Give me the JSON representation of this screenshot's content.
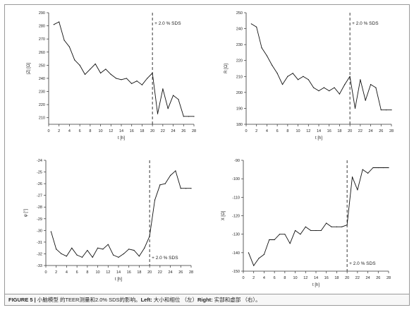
{
  "chart_data": [
    {
      "type": "line",
      "xlabel": "t [h]",
      "ylabel": "|Z| [Ω]",
      "xlim": [
        0,
        28
      ],
      "ylim": [
        205,
        290
      ],
      "xticks": [
        0,
        2,
        4,
        6,
        8,
        10,
        12,
        14,
        16,
        18,
        20,
        22,
        24,
        26,
        28
      ],
      "yticks": [
        210,
        220,
        230,
        240,
        250,
        260,
        270,
        280,
        290
      ],
      "annotation": {
        "text": "+ 2.0 % SDS",
        "x": 20,
        "position": "top"
      },
      "series": [
        {
          "x": [
            1,
            2,
            3,
            4,
            5,
            6,
            7,
            8,
            9,
            10,
            11,
            12,
            13,
            14,
            15,
            16,
            17,
            18,
            19,
            20,
            21,
            22,
            23,
            24,
            25,
            26,
            27,
            28
          ],
          "values": [
            281,
            283,
            269,
            264,
            254,
            250,
            243,
            247,
            251,
            244,
            247,
            243,
            240,
            239,
            240,
            236,
            238,
            235,
            240,
            244,
            213,
            232,
            217,
            227,
            224,
            211,
            211,
            211
          ]
        }
      ]
    },
    {
      "type": "line",
      "xlabel": "t [h]",
      "ylabel": "R [Ω]",
      "xlim": [
        0,
        28
      ],
      "ylim": [
        180,
        250
      ],
      "xticks": [
        0,
        2,
        4,
        6,
        8,
        10,
        12,
        14,
        16,
        18,
        20,
        22,
        24,
        26,
        28
      ],
      "yticks": [
        180,
        190,
        200,
        210,
        220,
        230,
        240,
        250
      ],
      "annotation": {
        "text": "+ 2.0 % SDS",
        "x": 20,
        "position": "top"
      },
      "series": [
        {
          "x": [
            1,
            2,
            3,
            4,
            5,
            6,
            7,
            8,
            9,
            10,
            11,
            12,
            13,
            14,
            15,
            16,
            17,
            18,
            19,
            20,
            21,
            22,
            23,
            24,
            25,
            26,
            27,
            28
          ],
          "values": [
            243,
            241,
            228,
            223,
            217,
            212,
            205,
            210,
            212,
            208,
            210,
            208,
            203,
            201,
            203,
            201,
            203,
            199,
            205,
            210,
            190,
            208,
            195,
            205,
            203,
            189,
            189,
            189
          ]
        }
      ]
    },
    {
      "type": "line",
      "xlabel": "t [h]",
      "ylabel": "φ [°]",
      "xlim": [
        0,
        28
      ],
      "ylim": [
        -33,
        -24
      ],
      "xticks": [
        0,
        2,
        4,
        6,
        8,
        10,
        12,
        14,
        16,
        18,
        20,
        22,
        24,
        26,
        28
      ],
      "yticks": [
        -33,
        -32,
        -31,
        -30,
        -29,
        -28,
        -27,
        -26,
        -25,
        -24
      ],
      "annotation": {
        "text": "+ 2.0 % SDS",
        "x": 20,
        "position": "bottom"
      },
      "series": [
        {
          "x": [
            1,
            2,
            3,
            4,
            5,
            6,
            7,
            8,
            9,
            10,
            11,
            12,
            13,
            14,
            15,
            16,
            17,
            18,
            19,
            20,
            21,
            22,
            23,
            24,
            25,
            26,
            27,
            28
          ],
          "values": [
            -30.1,
            -31.6,
            -32.0,
            -32.2,
            -31.5,
            -32.1,
            -32.3,
            -31.7,
            -32.3,
            -31.5,
            -31.6,
            -31.2,
            -32.1,
            -32.3,
            -32.0,
            -31.6,
            -31.7,
            -32.2,
            -31.5,
            -30.5,
            -27.4,
            -26.1,
            -26.0,
            -25.3,
            -24.9,
            -26.4,
            -26.4,
            -26.4
          ]
        }
      ]
    },
    {
      "type": "line",
      "xlabel": "t [h]",
      "ylabel": "X [Ω]",
      "xlim": [
        0,
        28
      ],
      "ylim": [
        -150,
        -90
      ],
      "xticks": [
        0,
        2,
        4,
        6,
        8,
        10,
        12,
        14,
        16,
        18,
        20,
        22,
        24,
        26,
        28
      ],
      "yticks": [
        -150,
        -140,
        -130,
        -120,
        -110,
        -100,
        -90
      ],
      "annotation": {
        "text": "+ 2.0 % SDS",
        "x": 20,
        "position": "bottom"
      },
      "series": [
        {
          "x": [
            1,
            2,
            3,
            4,
            5,
            6,
            7,
            8,
            9,
            10,
            11,
            12,
            13,
            14,
            15,
            16,
            17,
            18,
            19,
            20,
            21,
            22,
            23,
            24,
            25,
            26,
            27,
            28
          ],
          "values": [
            -140,
            -147,
            -143,
            -141,
            -133,
            -133,
            -130,
            -130,
            -135,
            -128,
            -130,
            -126,
            -128,
            -128,
            -128,
            -124,
            -126,
            -126,
            -126,
            -125,
            -99,
            -106,
            -95,
            -97,
            -94,
            -94,
            -94,
            -94
          ]
        }
      ]
    }
  ],
  "caption": {
    "figure_label": "FIGURE 5 |",
    "text_1": " 小脑模型 的TEER测量和2.0% SDS的影响。",
    "left_label": "Left:",
    "text_2": " 大小和相位 （左）",
    "right_label": "Right:",
    "text_3": " 实部和虚部 （右）。"
  },
  "colors": {
    "line": "#111111",
    "axis": "#333333",
    "background": "#ffffff",
    "caption_bg": "#f7f7f7"
  }
}
